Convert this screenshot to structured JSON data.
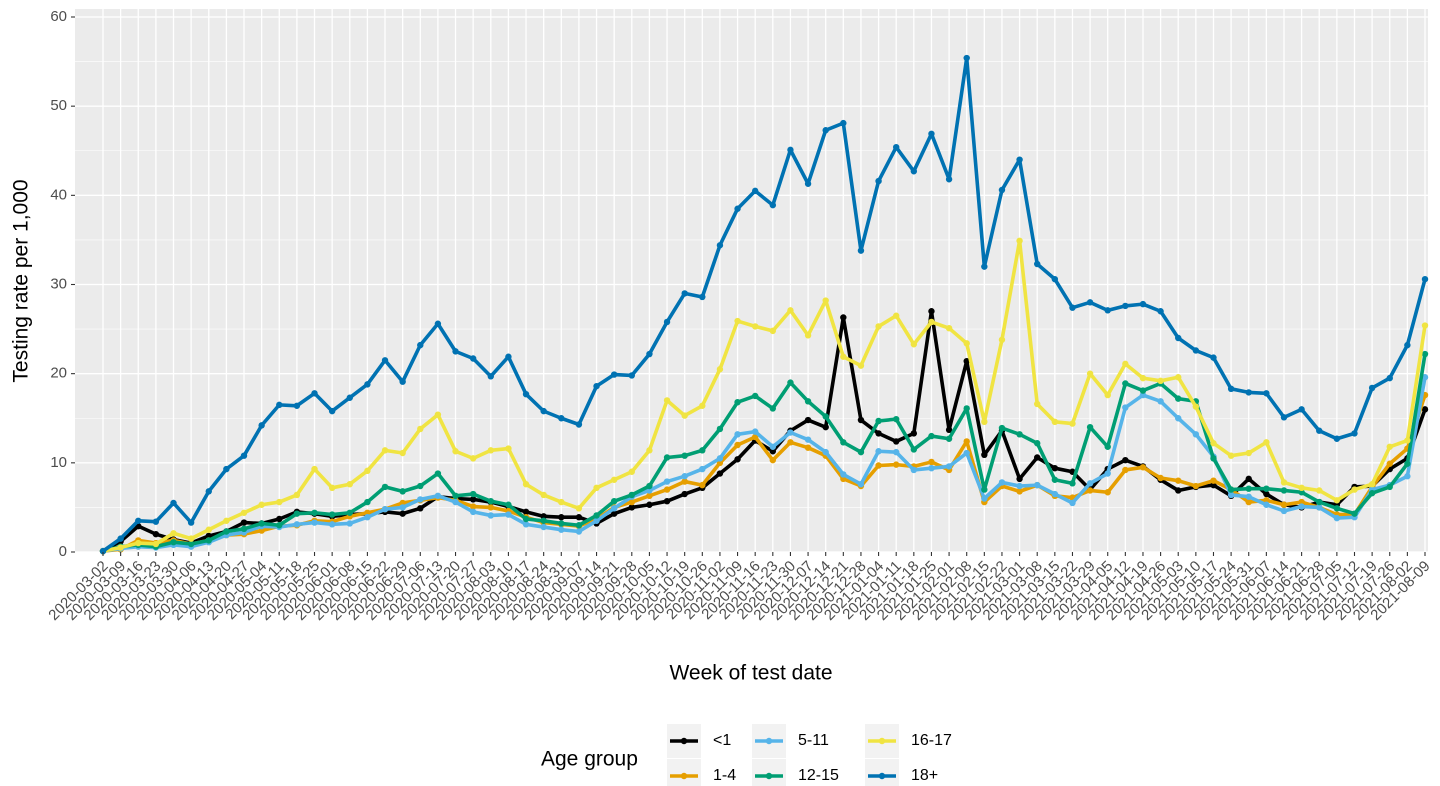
{
  "chart_data": {
    "type": "line",
    "x_label": "Week of test date",
    "y_label": "Testing rate per 1,000",
    "legend_title": "Age group",
    "legend": "bottom",
    "grid": true,
    "ylim": [
      0,
      60
    ],
    "yticks": [
      0,
      10,
      20,
      30,
      40,
      50,
      60
    ],
    "categories": [
      "2020-03-02",
      "2020-03-09",
      "2020-03-16",
      "2020-03-23",
      "2020-03-30",
      "2020-04-06",
      "2020-04-13",
      "2020-04-20",
      "2020-04-27",
      "2020-05-04",
      "2020-05-11",
      "2020-05-18",
      "2020-05-25",
      "2020-06-01",
      "2020-06-08",
      "2020-06-15",
      "2020-06-22",
      "2020-06-29",
      "2020-07-06",
      "2020-07-13",
      "2020-07-20",
      "2020-07-27",
      "2020-08-03",
      "2020-08-10",
      "2020-08-17",
      "2020-08-24",
      "2020-08-31",
      "2020-09-07",
      "2020-09-14",
      "2020-09-21",
      "2020-09-28",
      "2020-10-05",
      "2020-10-12",
      "2020-10-19",
      "2020-10-26",
      "2020-11-02",
      "2020-11-09",
      "2020-11-16",
      "2020-11-23",
      "2020-11-30",
      "2020-12-07",
      "2020-12-14",
      "2020-12-21",
      "2020-12-28",
      "2021-01-04",
      "2021-01-11",
      "2021-01-18",
      "2021-01-25",
      "2021-02-01",
      "2021-02-08",
      "2021-02-15",
      "2021-02-22",
      "2021-03-01",
      "2021-03-08",
      "2021-03-15",
      "2021-03-22",
      "2021-03-29",
      "2021-04-05",
      "2021-04-12",
      "2021-04-19",
      "2021-04-26",
      "2021-05-03",
      "2021-05-10",
      "2021-05-17",
      "2021-05-24",
      "2021-05-31",
      "2021-06-07",
      "2021-06-14",
      "2021-06-21",
      "2021-06-28",
      "2021-07-05",
      "2021-07-12",
      "2021-07-19",
      "2021-07-26",
      "2021-08-02",
      "2021-08-09"
    ],
    "series": [
      {
        "name": "<1",
        "color": "#000000",
        "values": [
          0.1,
          1.2,
          2.9,
          2.0,
          1.4,
          1.0,
          1.8,
          2.3,
          3.3,
          3.2,
          3.7,
          4.5,
          4.3,
          4.0,
          4.2,
          4.3,
          4.5,
          4.3,
          4.9,
          6.2,
          6.0,
          5.9,
          5.6,
          5.1,
          4.5,
          4.0,
          3.9,
          3.9,
          3.2,
          4.3,
          5.0,
          5.3,
          5.7,
          6.5,
          7.2,
          8.8,
          10.4,
          12.5,
          11.3,
          13.6,
          14.8,
          14.0,
          26.3,
          14.8,
          13.3,
          12.4,
          13.3,
          27.0,
          13.7,
          21.4,
          10.9,
          13.6,
          8.2,
          10.6,
          9.4,
          9.0,
          7.0,
          9.3,
          10.3,
          9.6,
          8.1,
          6.9,
          7.3,
          7.5,
          6.3,
          8.2,
          6.5,
          5.3,
          5.0,
          5.6,
          5.3,
          7.3,
          7.4,
          9.3,
          10.5,
          16.0
        ]
      },
      {
        "name": "1-4",
        "color": "#E69F00",
        "values": [
          0.1,
          0.3,
          1.3,
          1.0,
          1.3,
          0.9,
          1.3,
          1.9,
          2.0,
          2.4,
          2.9,
          3.0,
          3.5,
          3.4,
          4.0,
          4.4,
          4.8,
          5.5,
          5.8,
          6.1,
          5.8,
          5.1,
          5.0,
          4.6,
          3.9,
          3.3,
          3.1,
          2.9,
          3.7,
          5.0,
          5.6,
          6.3,
          7.0,
          7.9,
          7.5,
          10.0,
          12.0,
          12.9,
          10.3,
          12.3,
          11.7,
          10.8,
          8.2,
          7.4,
          9.7,
          9.8,
          9.6,
          10.1,
          9.2,
          12.4,
          5.6,
          7.4,
          6.8,
          7.5,
          6.3,
          6.1,
          6.9,
          6.7,
          9.2,
          9.5,
          8.3,
          8.0,
          7.4,
          8.0,
          7.0,
          5.6,
          5.8,
          5.3,
          5.6,
          5.0,
          4.2,
          4.2,
          7.3,
          9.9,
          11.6,
          17.6
        ]
      },
      {
        "name": "5-11",
        "color": "#56B4E9",
        "values": [
          0.1,
          0.4,
          0.6,
          0.5,
          0.8,
          0.6,
          1.1,
          1.9,
          2.2,
          2.9,
          2.8,
          3.1,
          3.3,
          3.1,
          3.2,
          3.9,
          4.8,
          5.0,
          5.9,
          6.3,
          5.6,
          4.5,
          4.1,
          4.2,
          3.1,
          2.8,
          2.5,
          2.3,
          3.5,
          4.9,
          6.2,
          6.9,
          7.9,
          8.5,
          9.3,
          10.5,
          13.2,
          13.5,
          11.8,
          13.4,
          12.6,
          11.2,
          8.7,
          7.6,
          11.3,
          11.2,
          9.2,
          9.4,
          9.6,
          11.1,
          6.0,
          7.8,
          7.4,
          7.5,
          6.5,
          5.5,
          7.7,
          8.8,
          16.2,
          17.6,
          16.9,
          15.0,
          13.2,
          10.7,
          6.4,
          6.2,
          5.3,
          4.6,
          5.1,
          5.0,
          3.8,
          3.9,
          7.0,
          7.5,
          8.5,
          19.6
        ]
      },
      {
        "name": "12-15",
        "color": "#009E73",
        "values": [
          0.1,
          0.6,
          0.8,
          0.6,
          1.1,
          0.9,
          1.3,
          2.3,
          2.6,
          3.2,
          3.0,
          4.3,
          4.4,
          4.2,
          4.4,
          5.6,
          7.3,
          6.8,
          7.4,
          8.8,
          6.3,
          6.5,
          5.7,
          5.3,
          3.7,
          3.5,
          3.2,
          3.0,
          4.1,
          5.7,
          6.4,
          7.4,
          10.6,
          10.8,
          11.4,
          13.8,
          16.8,
          17.5,
          16.1,
          19.0,
          16.9,
          15.2,
          12.3,
          11.2,
          14.7,
          14.9,
          11.5,
          13.0,
          12.7,
          16.1,
          7.0,
          13.9,
          13.2,
          12.2,
          8.1,
          7.7,
          14.0,
          11.8,
          18.9,
          18.1,
          18.9,
          17.2,
          16.9,
          10.5,
          7.0,
          7.1,
          7.1,
          6.9,
          6.7,
          5.6,
          4.9,
          4.3,
          6.6,
          7.3,
          9.9,
          22.2
        ]
      },
      {
        "name": "16-17",
        "color": "#F0E442",
        "values": [
          0.1,
          0.5,
          1.0,
          0.9,
          2.1,
          1.5,
          2.5,
          3.5,
          4.4,
          5.3,
          5.6,
          6.4,
          9.3,
          7.2,
          7.6,
          9.1,
          11.4,
          11.1,
          13.8,
          15.4,
          11.3,
          10.5,
          11.4,
          11.6,
          7.6,
          6.4,
          5.6,
          4.9,
          7.2,
          8.1,
          9.0,
          11.4,
          17.0,
          15.3,
          16.4,
          20.5,
          25.9,
          25.3,
          24.8,
          27.1,
          24.3,
          28.2,
          21.9,
          20.9,
          25.3,
          26.5,
          23.3,
          25.8,
          25.1,
          23.4,
          14.6,
          23.8,
          34.9,
          16.6,
          14.6,
          14.4,
          20.0,
          17.6,
          21.1,
          19.5,
          19.2,
          19.6,
          16.3,
          12.2,
          10.8,
          11.1,
          12.3,
          7.8,
          7.2,
          6.9,
          5.8,
          7.0,
          7.6,
          11.8,
          12.5,
          25.4
        ]
      },
      {
        "name": "18+",
        "color": "#0072B2",
        "values": [
          0.1,
          1.5,
          3.5,
          3.4,
          5.5,
          3.3,
          6.8,
          9.3,
          10.8,
          14.2,
          16.5,
          16.4,
          17.8,
          15.8,
          17.3,
          18.8,
          21.5,
          19.1,
          23.2,
          25.6,
          22.5,
          21.7,
          19.7,
          21.9,
          17.7,
          15.8,
          15.0,
          14.3,
          18.6,
          19.9,
          19.8,
          22.2,
          25.8,
          29.0,
          28.6,
          34.4,
          38.5,
          40.5,
          38.9,
          45.1,
          41.3,
          47.3,
          48.1,
          33.8,
          41.6,
          45.4,
          42.7,
          46.9,
          41.8,
          55.4,
          32.0,
          40.6,
          44.0,
          32.3,
          30.6,
          27.4,
          28.0,
          27.1,
          27.6,
          27.8,
          27.0,
          24.0,
          22.6,
          21.8,
          18.3,
          17.9,
          17.8,
          15.1,
          16.0,
          13.6,
          12.7,
          13.3,
          18.4,
          19.5,
          23.2,
          30.6
        ]
      }
    ]
  }
}
